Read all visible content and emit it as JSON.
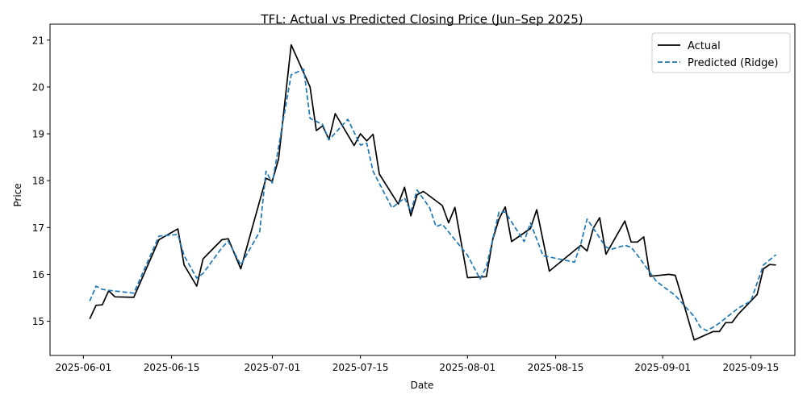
{
  "chart_data": {
    "type": "line",
    "title": "TFL: Actual vs Predicted Closing Price (Jun–Sep 2025)",
    "xlabel": "Date",
    "ylabel": "Price",
    "x_range_days": [
      -5.3,
      113.0
    ],
    "ylim": [
      14.27,
      21.34
    ],
    "x_ticks": [
      {
        "day": 0,
        "label": "2025-06-01"
      },
      {
        "day": 14,
        "label": "2025-06-15"
      },
      {
        "day": 30,
        "label": "2025-07-01"
      },
      {
        "day": 44,
        "label": "2025-07-15"
      },
      {
        "day": 61,
        "label": "2025-08-01"
      },
      {
        "day": 75,
        "label": "2025-08-15"
      },
      {
        "day": 92,
        "label": "2025-09-01"
      },
      {
        "day": 106,
        "label": "2025-09-15"
      }
    ],
    "y_ticks": [
      15,
      16,
      17,
      18,
      19,
      20,
      21
    ],
    "legend": {
      "position": "top-right"
    },
    "series": [
      {
        "name": "Actual",
        "color": "#000000",
        "style": "solid",
        "points": [
          [
            1,
            15.05
          ],
          [
            2,
            15.34
          ],
          [
            3,
            15.35
          ],
          [
            4,
            15.65
          ],
          [
            5,
            15.52
          ],
          [
            8,
            15.51
          ],
          [
            12,
            16.74
          ],
          [
            15,
            16.97
          ],
          [
            16,
            16.2
          ],
          [
            18,
            15.75
          ],
          [
            19,
            16.33
          ],
          [
            22,
            16.74
          ],
          [
            23,
            16.76
          ],
          [
            25,
            16.12
          ],
          [
            29,
            18.05
          ],
          [
            30,
            17.99
          ],
          [
            31,
            18.46
          ],
          [
            33,
            20.9
          ],
          [
            36,
            20.0
          ],
          [
            37,
            19.07
          ],
          [
            38,
            19.17
          ],
          [
            39,
            18.88
          ],
          [
            40,
            19.43
          ],
          [
            43,
            18.75
          ],
          [
            44,
            19.0
          ],
          [
            45,
            18.85
          ],
          [
            46,
            18.99
          ],
          [
            47,
            18.14
          ],
          [
            50,
            17.5
          ],
          [
            51,
            17.86
          ],
          [
            52,
            17.25
          ],
          [
            53,
            17.7
          ],
          [
            54,
            17.77
          ],
          [
            57,
            17.47
          ],
          [
            58,
            17.1
          ],
          [
            59,
            17.43
          ],
          [
            61,
            15.93
          ],
          [
            64,
            15.95
          ],
          [
            65,
            16.74
          ],
          [
            66,
            17.18
          ],
          [
            67,
            17.44
          ],
          [
            68,
            16.7
          ],
          [
            71,
            16.98
          ],
          [
            72,
            17.38
          ],
          [
            74,
            16.07
          ],
          [
            79,
            16.62
          ],
          [
            80,
            16.5
          ],
          [
            81,
            16.99
          ],
          [
            82,
            17.21
          ],
          [
            83,
            16.43
          ],
          [
            86,
            17.14
          ],
          [
            87,
            16.69
          ],
          [
            88,
            16.69
          ],
          [
            89,
            16.8
          ],
          [
            90,
            15.96
          ],
          [
            93,
            16.0
          ],
          [
            94,
            15.98
          ],
          [
            95,
            15.53
          ],
          [
            97,
            14.6
          ],
          [
            100,
            14.78
          ],
          [
            101,
            14.78
          ],
          [
            102,
            14.97
          ],
          [
            103,
            14.97
          ],
          [
            104,
            15.15
          ],
          [
            107,
            15.57
          ],
          [
            108,
            16.12
          ],
          [
            109,
            16.21
          ],
          [
            110,
            16.2
          ]
        ]
      },
      {
        "name": "Predicted (Ridge)",
        "color": "#1f77b4",
        "style": "dashed",
        "points": [
          [
            1,
            15.43
          ],
          [
            2,
            15.75
          ],
          [
            3,
            15.68
          ],
          [
            4,
            15.66
          ],
          [
            8,
            15.6
          ],
          [
            12,
            16.82
          ],
          [
            15,
            16.85
          ],
          [
            16,
            16.4
          ],
          [
            18,
            15.92
          ],
          [
            19,
            16.02
          ],
          [
            22,
            16.57
          ],
          [
            23,
            16.71
          ],
          [
            25,
            16.2
          ],
          [
            28,
            16.91
          ],
          [
            29,
            18.2
          ],
          [
            30,
            17.95
          ],
          [
            33,
            20.26
          ],
          [
            35,
            20.38
          ],
          [
            36,
            19.33
          ],
          [
            38,
            19.2
          ],
          [
            39,
            18.87
          ],
          [
            42,
            19.31
          ],
          [
            44,
            18.76
          ],
          [
            45,
            18.8
          ],
          [
            46,
            18.2
          ],
          [
            49,
            17.42
          ],
          [
            51,
            17.63
          ],
          [
            52,
            17.34
          ],
          [
            53,
            17.8
          ],
          [
            55,
            17.42
          ],
          [
            56,
            17.02
          ],
          [
            57,
            17.07
          ],
          [
            61,
            16.41
          ],
          [
            63,
            15.9
          ],
          [
            64,
            16.16
          ],
          [
            66,
            17.33
          ],
          [
            67,
            17.33
          ],
          [
            70,
            16.7
          ],
          [
            71,
            17.1
          ],
          [
            73,
            16.4
          ],
          [
            78,
            16.26
          ],
          [
            79,
            16.65
          ],
          [
            80,
            17.18
          ],
          [
            83,
            16.58
          ],
          [
            84,
            16.54
          ],
          [
            86,
            16.62
          ],
          [
            87,
            16.58
          ],
          [
            88,
            16.41
          ],
          [
            91,
            15.85
          ],
          [
            94,
            15.55
          ],
          [
            97,
            15.1
          ],
          [
            98,
            14.87
          ],
          [
            99,
            14.8
          ],
          [
            100,
            14.87
          ],
          [
            101,
            14.96
          ],
          [
            104,
            15.28
          ],
          [
            106,
            15.43
          ],
          [
            108,
            16.2
          ],
          [
            110,
            16.42
          ]
        ]
      }
    ]
  }
}
